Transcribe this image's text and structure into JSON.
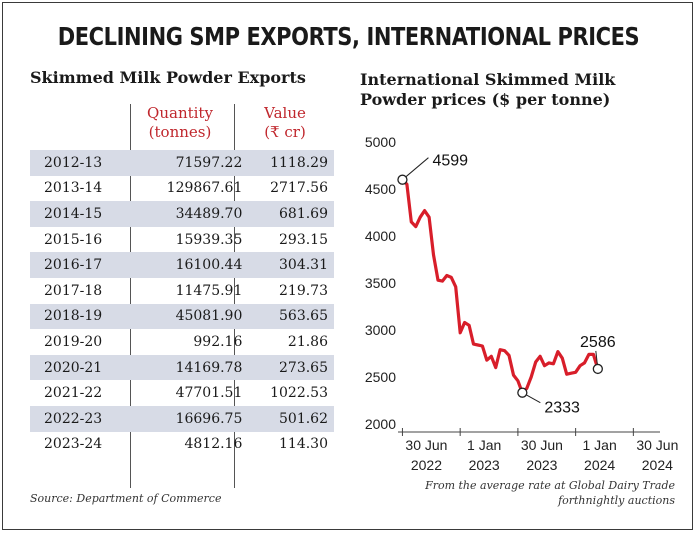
{
  "title": "DECLINING SMP EXPORTS, INTERNATIONAL PRICES",
  "table": {
    "subtitle": "Skimmed Milk Powder Exports",
    "col_quantity": [
      "Quantity",
      "(tonnes)"
    ],
    "col_value": [
      "Value",
      "(₹ cr)"
    ],
    "rows": [
      {
        "year": "2012-13",
        "quantity": "71597.22",
        "value": "1118.29"
      },
      {
        "year": "2013-14",
        "quantity": "129867.61",
        "value": "2717.56"
      },
      {
        "year": "2014-15",
        "quantity": "34489.70",
        "value": "681.69"
      },
      {
        "year": "2015-16",
        "quantity": "15939.35",
        "value": "293.15"
      },
      {
        "year": "2016-17",
        "quantity": "16100.44",
        "value": "304.31"
      },
      {
        "year": "2017-18",
        "quantity": "11475.91",
        "value": "219.73"
      },
      {
        "year": "2018-19",
        "quantity": "45081.90",
        "value": "563.65"
      },
      {
        "year": "2019-20",
        "quantity": "992.16",
        "value": "21.86"
      },
      {
        "year": "2020-21",
        "quantity": "14169.78",
        "value": "273.65"
      },
      {
        "year": "2021-22",
        "quantity": "47701.51",
        "value": "1022.53"
      },
      {
        "year": "2022-23",
        "quantity": "16696.75",
        "value": "501.62"
      },
      {
        "year": "2023-24",
        "quantity": "4812.16",
        "value": "114.30"
      }
    ],
    "source": "Source: Department of Commerce"
  },
  "chart_data": {
    "type": "line",
    "title": "International Skimmed Milk Powder prices ($ per tonne)",
    "title_lines": [
      "International Skimmed Milk",
      "Powder prices ($ per tonne)"
    ],
    "line_color": "#d81e2a",
    "ylim": [
      2000,
      5000
    ],
    "yticks": [
      "2000",
      "2500",
      "3000",
      "3500",
      "4000",
      "4500",
      "5000"
    ],
    "xticks": [
      {
        "line1": "30 Jun",
        "line2": "2022"
      },
      {
        "line1": "1 Jan",
        "line2": "2023"
      },
      {
        "line1": "30 Jun",
        "line2": "2023"
      },
      {
        "line1": "1 Jan",
        "line2": "2024"
      },
      {
        "line1": "30 Jun",
        "line2": "2024"
      }
    ],
    "x_unit": "auction index (fortnightly), 0 = 30 Jun 2022",
    "xlim": [
      -1,
      58
    ],
    "xtick_positions": [
      0,
      13,
      26,
      39,
      52
    ],
    "series": [
      {
        "name": "SMP price",
        "points": [
          [
            0,
            4599
          ],
          [
            1,
            4550
          ],
          [
            2,
            4150
          ],
          [
            3,
            4100
          ],
          [
            4,
            4200
          ],
          [
            5,
            4270
          ],
          [
            6,
            4200
          ],
          [
            7,
            3800
          ],
          [
            8,
            3530
          ],
          [
            9,
            3520
          ],
          [
            10,
            3580
          ],
          [
            11,
            3560
          ],
          [
            12,
            3460
          ],
          [
            13,
            2970
          ],
          [
            14,
            3080
          ],
          [
            15,
            3050
          ],
          [
            16,
            2850
          ],
          [
            17,
            2840
          ],
          [
            18,
            2830
          ],
          [
            19,
            2680
          ],
          [
            20,
            2720
          ],
          [
            21,
            2600
          ],
          [
            22,
            2790
          ],
          [
            23,
            2780
          ],
          [
            24,
            2730
          ],
          [
            25,
            2520
          ],
          [
            26,
            2460
          ],
          [
            27,
            2333
          ],
          [
            28,
            2380
          ],
          [
            29,
            2500
          ],
          [
            30,
            2660
          ],
          [
            31,
            2720
          ],
          [
            32,
            2620
          ],
          [
            33,
            2650
          ],
          [
            34,
            2640
          ],
          [
            35,
            2770
          ],
          [
            36,
            2700
          ],
          [
            37,
            2530
          ],
          [
            38,
            2540
          ],
          [
            39,
            2550
          ],
          [
            40,
            2620
          ],
          [
            41,
            2650
          ],
          [
            42,
            2740
          ],
          [
            43,
            2740
          ],
          [
            44,
            2586
          ]
        ]
      }
    ],
    "annotations": [
      {
        "label": "4599",
        "point_index": 0
      },
      {
        "label": "2333",
        "point_index": 27
      },
      {
        "label": "2586",
        "point_index": 44
      }
    ],
    "note": [
      "From the average rate at Global Dairy Trade",
      "forthnightly auctions"
    ]
  }
}
